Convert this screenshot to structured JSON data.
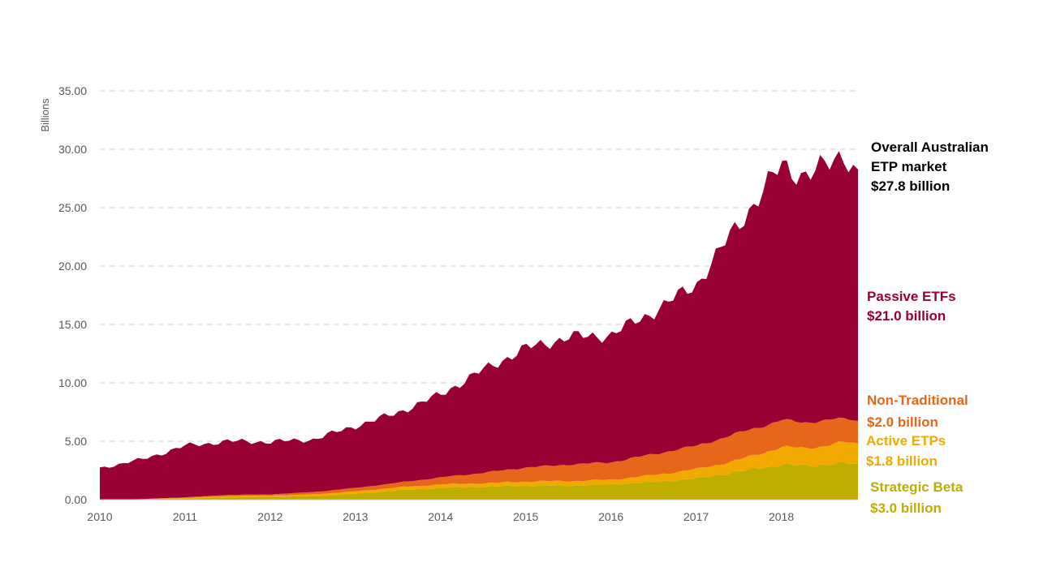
{
  "chart_data": {
    "type": "area",
    "stacked": true,
    "ylabel": "Billions",
    "ylim": [
      0,
      35
    ],
    "yticks": [
      "0.00",
      "5.00",
      "10.00",
      "15.00",
      "20.00",
      "25.00",
      "30.00",
      "35.00"
    ],
    "xticks": [
      "2010",
      "2011",
      "2012",
      "2013",
      "2014",
      "2015",
      "2016",
      "2017",
      "2018"
    ],
    "xlim": [
      2010,
      2018.9
    ],
    "grid": "horizontal-dashed",
    "x": [
      2010.0,
      2010.5,
      2011.0,
      2011.5,
      2012.0,
      2012.5,
      2013.0,
      2013.5,
      2014.0,
      2014.5,
      2015.0,
      2015.5,
      2016.0,
      2016.5,
      2017.0,
      2017.5,
      2018.0,
      2018.25,
      2018.5,
      2018.75,
      2018.9
    ],
    "series": [
      {
        "name": "Strategic Beta",
        "color": "#BFAE00",
        "values": [
          0,
          0.05,
          0.1,
          0.2,
          0.25,
          0.3,
          0.5,
          0.8,
          1.0,
          1.1,
          1.2,
          1.2,
          1.3,
          1.5,
          1.8,
          2.4,
          3.0,
          2.9,
          3.0,
          3.1,
          3.0
        ]
      },
      {
        "name": "Active ETPs",
        "color": "#F2A900",
        "values": [
          0,
          0,
          0.05,
          0.1,
          0.1,
          0.15,
          0.2,
          0.25,
          0.3,
          0.3,
          0.35,
          0.4,
          0.4,
          0.6,
          0.8,
          1.0,
          1.5,
          1.5,
          1.6,
          1.8,
          1.8
        ]
      },
      {
        "name": "Non-Traditional",
        "color": "#E8661A",
        "values": [
          0,
          0,
          0.05,
          0.1,
          0.1,
          0.2,
          0.3,
          0.4,
          0.6,
          0.9,
          1.2,
          1.4,
          1.5,
          1.8,
          2.0,
          2.3,
          2.3,
          2.2,
          2.2,
          2.0,
          2.0
        ]
      },
      {
        "name": "Passive ETFs",
        "color": "#990033",
        "values": [
          2.7,
          3.4,
          4.4,
          4.6,
          4.5,
          4.5,
          5.3,
          6.0,
          7.1,
          8.8,
          10.2,
          10.9,
          10.9,
          12.2,
          13.8,
          17.9,
          21.8,
          21.2,
          21.6,
          22.8,
          21.0
        ]
      }
    ],
    "annotations": [
      {
        "id": "overall",
        "lines": [
          "Overall Australian",
          "ETP market",
          "$27.8 billion"
        ],
        "color": "#000000"
      },
      {
        "id": "passive",
        "lines": [
          "Passive ETFs",
          "$21.0 billion"
        ],
        "color": "#990033"
      },
      {
        "id": "nontrad",
        "lines": [
          "Non-Traditional",
          "$2.0 billion"
        ],
        "color": "#E8661A"
      },
      {
        "id": "active",
        "lines": [
          "Active ETPs",
          "$1.8 billion"
        ],
        "color": "#F2A900"
      },
      {
        "id": "strategic",
        "lines": [
          "Strategic Beta",
          "$3.0 billion"
        ],
        "color": "#BFAE00"
      }
    ]
  }
}
